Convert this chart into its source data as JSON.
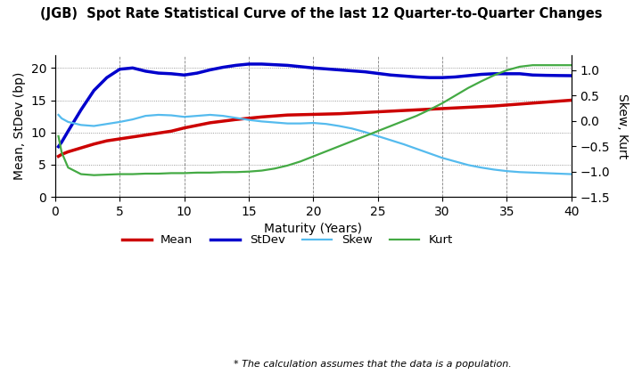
{
  "title": "(JGB)  Spot Rate Statistical Curve of the last 12 Quarter-to-Quarter Changes",
  "xlabel": "Maturity (Years)",
  "ylabel_left": "Mean, StDev (bp)",
  "ylabel_right": "Skew, Kurt",
  "footnote": "* The calculation assumes that the data is a population.",
  "mean_x": [
    0.25,
    0.5,
    1,
    2,
    3,
    4,
    5,
    6,
    7,
    8,
    9,
    10,
    12,
    14,
    16,
    18,
    20,
    22,
    24,
    26,
    28,
    30,
    32,
    34,
    36,
    38,
    40
  ],
  "mean_y": [
    6.3,
    6.6,
    7.0,
    7.6,
    8.2,
    8.7,
    9.0,
    9.3,
    9.6,
    9.9,
    10.2,
    10.7,
    11.5,
    12.0,
    12.4,
    12.7,
    12.8,
    12.9,
    13.1,
    13.3,
    13.5,
    13.7,
    13.9,
    14.1,
    14.4,
    14.7,
    15.0
  ],
  "stdev_x": [
    0.25,
    0.5,
    1,
    2,
    3,
    4,
    5,
    6,
    7,
    8,
    9,
    10,
    11,
    12,
    13,
    14,
    15,
    16,
    17,
    18,
    19,
    20,
    22,
    24,
    26,
    28,
    29,
    30,
    31,
    32,
    33,
    34,
    35,
    36,
    37,
    38,
    39,
    40
  ],
  "stdev_y": [
    7.8,
    8.5,
    10.2,
    13.5,
    16.5,
    18.5,
    19.8,
    20.0,
    19.5,
    19.2,
    19.1,
    18.9,
    19.2,
    19.7,
    20.1,
    20.4,
    20.6,
    20.6,
    20.5,
    20.4,
    20.2,
    20.0,
    19.7,
    19.4,
    18.9,
    18.6,
    18.5,
    18.5,
    18.6,
    18.8,
    19.0,
    19.1,
    19.1,
    19.1,
    18.9,
    18.85,
    18.82,
    18.8
  ],
  "skew_x": [
    0.25,
    0.5,
    1,
    2,
    3,
    4,
    5,
    6,
    7,
    8,
    9,
    10,
    11,
    12,
    13,
    14,
    15,
    16,
    17,
    18,
    19,
    20,
    21,
    22,
    23,
    24,
    25,
    26,
    27,
    28,
    29,
    30,
    31,
    32,
    33,
    34,
    35,
    36,
    37,
    38,
    39,
    40
  ],
  "skew_y": [
    0.12,
    0.05,
    -0.02,
    -0.08,
    -0.1,
    -0.06,
    -0.02,
    0.03,
    0.1,
    0.12,
    0.11,
    0.08,
    0.1,
    0.12,
    0.1,
    0.06,
    0.02,
    -0.01,
    -0.03,
    -0.05,
    -0.05,
    -0.04,
    -0.06,
    -0.1,
    -0.15,
    -0.22,
    -0.3,
    -0.38,
    -0.46,
    -0.55,
    -0.64,
    -0.73,
    -0.8,
    -0.87,
    -0.92,
    -0.96,
    -0.99,
    -1.01,
    -1.02,
    -1.03,
    -1.04,
    -1.05
  ],
  "kurt_x": [
    0.25,
    0.5,
    1,
    2,
    3,
    4,
    5,
    6,
    7,
    8,
    9,
    10,
    11,
    12,
    13,
    14,
    15,
    16,
    17,
    18,
    19,
    20,
    21,
    22,
    23,
    24,
    25,
    26,
    27,
    28,
    29,
    30,
    31,
    32,
    33,
    34,
    35,
    36,
    37,
    38,
    39,
    40
  ],
  "kurt_y": [
    -0.3,
    -0.62,
    -0.92,
    -1.05,
    -1.07,
    -1.06,
    -1.05,
    -1.05,
    -1.04,
    -1.04,
    -1.03,
    -1.03,
    -1.02,
    -1.02,
    -1.01,
    -1.01,
    -1.0,
    -0.98,
    -0.94,
    -0.88,
    -0.8,
    -0.7,
    -0.6,
    -0.5,
    -0.4,
    -0.3,
    -0.2,
    -0.1,
    0.0,
    0.1,
    0.22,
    0.35,
    0.5,
    0.65,
    0.78,
    0.9,
    1.0,
    1.07,
    1.1,
    1.1,
    1.1,
    1.1
  ],
  "color_mean": "#cc0000",
  "color_stdev": "#0000cc",
  "color_skew": "#55bbee",
  "color_kurt": "#44aa44",
  "xlim": [
    0,
    40
  ],
  "ylim_left": [
    0.0,
    22.0
  ],
  "ylim_right": [
    -1.5,
    1.3
  ],
  "xticks": [
    0,
    5,
    10,
    15,
    20,
    25,
    30,
    35,
    40
  ],
  "yticks_left": [
    0.0,
    5.0,
    10.0,
    15.0,
    20.0
  ],
  "yticks_right": [
    -1.5,
    -1.0,
    -0.5,
    0.0,
    0.5,
    1.0
  ],
  "legend_labels": [
    "Mean",
    "StDev",
    "Skew",
    "Kurt"
  ],
  "legend_colors": [
    "#cc0000",
    "#0000cc",
    "#55bbee",
    "#44aa44"
  ]
}
